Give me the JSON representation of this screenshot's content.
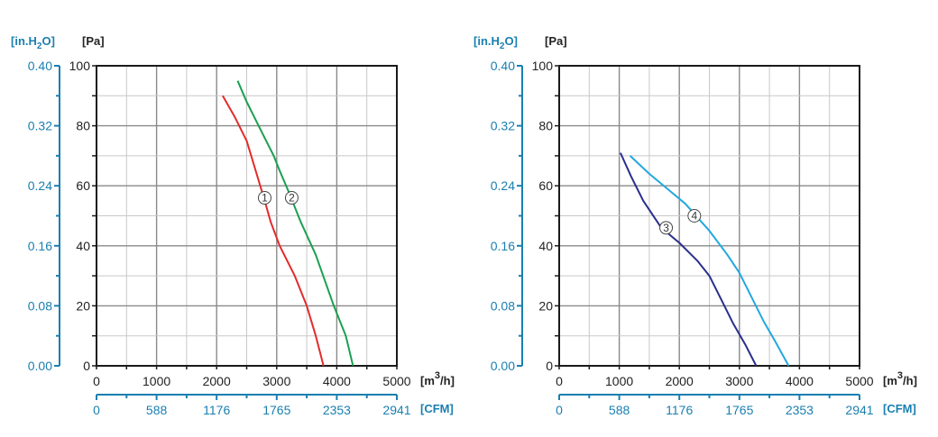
{
  "chart_data": [
    {
      "type": "line",
      "title": "",
      "xlabel": "[m3/h]",
      "x2label": "[CFM]",
      "ylabel": "[Pa]",
      "y2label": "[in.H2O]",
      "xlim": [
        0,
        5000
      ],
      "ylim": [
        0,
        100
      ],
      "grid": true,
      "x_ticks": [
        "0",
        "1000",
        "2000",
        "3000",
        "4000",
        "5000"
      ],
      "x2_ticks": [
        "0",
        "588",
        "1176",
        "1765",
        "2353",
        "2941"
      ],
      "y_ticks": [
        "0",
        "20",
        "40",
        "60",
        "80",
        "100"
      ],
      "y2_ticks": [
        "0.00",
        "0.08",
        "0.16",
        "0.24",
        "0.32",
        "0.40"
      ],
      "series": [
        {
          "name": "1",
          "color": "#e32b2b",
          "label_at": [
            2800,
            56
          ],
          "x": [
            2100,
            2300,
            2500,
            2650,
            2800,
            2900,
            3050,
            3300,
            3500,
            3650,
            3780
          ],
          "y": [
            90,
            83,
            75,
            65,
            55,
            48,
            40,
            30,
            20,
            10,
            0
          ]
        },
        {
          "name": "2",
          "color": "#1aa050",
          "label_at": [
            3250,
            56
          ],
          "x": [
            2350,
            2500,
            2750,
            2950,
            3050,
            3200,
            3400,
            3650,
            3950,
            4150,
            4270
          ],
          "y": [
            95,
            88,
            78,
            70,
            65,
            58,
            48,
            37,
            20,
            10,
            0
          ]
        }
      ]
    },
    {
      "type": "line",
      "title": "",
      "xlabel": "[m3/h]",
      "x2label": "[CFM]",
      "ylabel": "[Pa]",
      "y2label": "[in.H2O]",
      "xlim": [
        0,
        5000
      ],
      "ylim": [
        0,
        100
      ],
      "grid": true,
      "x_ticks": [
        "0",
        "1000",
        "2000",
        "3000",
        "4000",
        "5000"
      ],
      "x2_ticks": [
        "0",
        "588",
        "1176",
        "1765",
        "2353",
        "2941"
      ],
      "y_ticks": [
        "0",
        "20",
        "40",
        "60",
        "80",
        "100"
      ],
      "y2_ticks": [
        "0.00",
        "0.08",
        "0.16",
        "0.24",
        "0.32",
        "0.40"
      ],
      "series": [
        {
          "name": "3",
          "color": "#2a2e8c",
          "label_at": [
            1780,
            46
          ],
          "x": [
            1020,
            1200,
            1400,
            1700,
            2000,
            2300,
            2500,
            2700,
            2900,
            3100,
            3280
          ],
          "y": [
            71,
            63,
            55,
            46,
            41,
            35,
            30,
            22,
            14,
            7,
            0
          ]
        },
        {
          "name": "4",
          "color": "#22a8df",
          "label_at": [
            2250,
            50
          ],
          "x": [
            1180,
            1500,
            1800,
            2100,
            2500,
            2800,
            3000,
            3200,
            3400,
            3600,
            3820
          ],
          "y": [
            70,
            64,
            59,
            54,
            45,
            37,
            31,
            23,
            15,
            8,
            0
          ]
        }
      ]
    }
  ]
}
